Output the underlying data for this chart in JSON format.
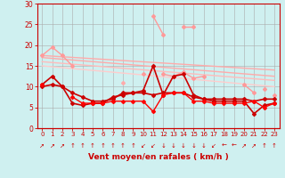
{
  "xlabel": "Vent moyen/en rafales ( km/h )",
  "x": [
    0,
    1,
    2,
    3,
    4,
    5,
    6,
    7,
    8,
    9,
    10,
    11,
    12,
    13,
    14,
    15,
    16,
    17,
    18,
    19,
    20,
    21,
    22,
    23
  ],
  "series": [
    {
      "color": "#ffaaaa",
      "lw": 1.0,
      "marker": null,
      "y_start": 17.5,
      "y_end": 14.0,
      "type": "linear"
    },
    {
      "color": "#ffaaaa",
      "lw": 1.0,
      "marker": null,
      "y_start": 17.0,
      "y_end": 12.5,
      "type": "linear"
    },
    {
      "color": "#ffbbbb",
      "lw": 1.0,
      "marker": null,
      "y_start": 16.0,
      "y_end": 11.5,
      "type": "linear"
    },
    {
      "color": "#ffcccc",
      "lw": 1.0,
      "marker": null,
      "y_start": 15.0,
      "y_end": 10.0,
      "type": "linear"
    },
    {
      "color": "#ff9999",
      "lw": 1.0,
      "marker": "D",
      "ms": 2.0,
      "type": "data",
      "y": [
        17.5,
        19.5,
        17.5,
        15.0,
        null,
        null,
        null,
        null,
        null,
        null,
        13.0,
        null,
        13.0,
        12.5,
        13.5,
        12.0,
        12.5,
        null,
        null,
        null,
        10.5,
        8.5,
        null,
        8.0
      ]
    },
    {
      "color": "#ff9999",
      "lw": 1.0,
      "marker": "D",
      "ms": 2.0,
      "type": "data",
      "y": [
        null,
        null,
        null,
        null,
        null,
        null,
        null,
        null,
        null,
        null,
        null,
        27.0,
        22.5,
        null,
        24.5,
        24.5,
        null,
        null,
        null,
        null,
        null,
        null,
        9.5,
        null
      ]
    },
    {
      "color": "#ffaaaa",
      "lw": 1.0,
      "marker": "D",
      "ms": 2.0,
      "type": "data",
      "y": [
        null,
        null,
        null,
        null,
        null,
        null,
        null,
        null,
        11.0,
        null,
        null,
        null,
        null,
        null,
        null,
        null,
        null,
        null,
        null,
        null,
        null,
        null,
        null,
        null
      ]
    },
    {
      "color": "#cc0000",
      "lw": 1.2,
      "marker": "D",
      "ms": 2.0,
      "type": "data",
      "y": [
        10.5,
        12.5,
        10.0,
        6.0,
        5.5,
        6.0,
        6.0,
        7.5,
        8.0,
        8.5,
        9.0,
        15.0,
        8.0,
        12.5,
        13.0,
        8.0,
        7.0,
        6.5,
        6.5,
        6.5,
        6.5,
        3.5,
        5.5,
        6.0
      ]
    },
    {
      "color": "#cc0000",
      "lw": 1.2,
      "marker": "D",
      "ms": 2.0,
      "type": "data",
      "y": [
        10.0,
        10.5,
        10.0,
        8.5,
        7.5,
        6.5,
        6.5,
        7.0,
        8.5,
        8.5,
        8.5,
        8.0,
        8.5,
        8.5,
        8.5,
        7.5,
        7.0,
        7.0,
        7.0,
        7.0,
        7.0,
        6.5,
        7.0,
        7.0
      ]
    },
    {
      "color": "#ff0000",
      "lw": 1.0,
      "marker": "D",
      "ms": 2.0,
      "type": "data",
      "y": [
        10.5,
        null,
        null,
        7.5,
        6.0,
        6.0,
        6.0,
        6.5,
        6.5,
        6.5,
        6.5,
        4.0,
        8.0,
        8.5,
        8.5,
        6.5,
        6.5,
        6.0,
        6.0,
        6.0,
        6.0,
        6.5,
        5.0,
        6.0
      ]
    }
  ],
  "wind_arrows": [
    "↗",
    "↗",
    "↗",
    "↑",
    "↑",
    "↑",
    "↑",
    "↑",
    "↑",
    "↑",
    "↙",
    "↙",
    "↓",
    "↓",
    "↓",
    "↓",
    "↓",
    "↙",
    "←",
    "←",
    "↗",
    "↗",
    "↑",
    "↑"
  ],
  "ylim": [
    0,
    30
  ],
  "yticks": [
    0,
    5,
    10,
    15,
    20,
    25,
    30
  ],
  "xlim": [
    -0.5,
    23.5
  ],
  "bg_color": "#cff0f0",
  "grid_color": "#aaaaaa",
  "tick_color": "#cc0000",
  "label_color": "#cc0000",
  "axis_color": "#cc0000"
}
